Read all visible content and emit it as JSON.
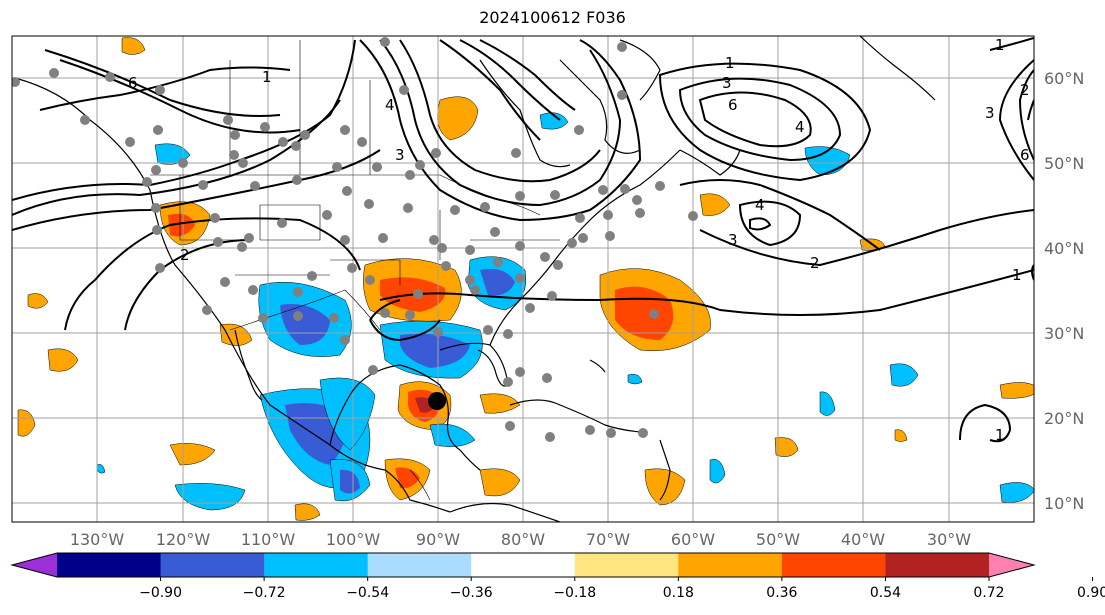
{
  "title": "2024100612 F036",
  "longitude_labels": [
    "130°W",
    "120°W",
    "110°W",
    "100°W",
    "90°W",
    "80°W",
    "70°W",
    "60°W",
    "50°W",
    "40°W",
    "30°W"
  ],
  "latitude_labels": [
    "60°N",
    "50°N",
    "40°N",
    "30°N",
    "20°N",
    "10°N"
  ],
  "colorbar": {
    "ticks": [
      "−0.90",
      "−0.72",
      "−0.54",
      "−0.36",
      "−0.18",
      "0.18",
      "0.36",
      "0.54",
      "0.72",
      "0.90"
    ],
    "colors": [
      "#9b30d9",
      "#00008b",
      "#3a5bd6",
      "#00bfff",
      "#aadcff",
      "#ffffff",
      "#ffe680",
      "#ffa500",
      "#ff4500",
      "#b22222",
      "#ff80b0"
    ]
  },
  "contour_labels": [
    "1",
    "6",
    "4",
    "3",
    "1",
    "3",
    "6",
    "4",
    "4",
    "3",
    "2",
    "2",
    "1",
    "1",
    "6",
    "3",
    "2",
    "1"
  ],
  "storm_marker": "black-dot"
}
